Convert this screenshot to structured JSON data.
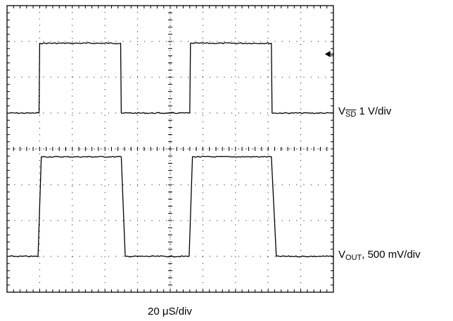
{
  "chart_data": {
    "type": "line",
    "grid": true,
    "x_divisions": 10,
    "y_divisions": 8,
    "time_per_div_us": 20,
    "x_label": {
      "value": "20 ",
      "unit_prefix": "μ",
      "unit": "S/div"
    },
    "series": [
      {
        "name": "VSD",
        "label": {
          "prefix": "V",
          "sub": "SD",
          "suffix": " 1 V/div"
        },
        "color": "#000000",
        "div_per_v": 1,
        "baseline_div": 5.0,
        "high_div": 6.95,
        "points_div": [
          [
            0,
            5.0
          ],
          [
            0.98,
            5.0
          ],
          [
            1.0,
            6.95
          ],
          [
            3.48,
            6.95
          ],
          [
            3.5,
            5.0
          ],
          [
            5.6,
            5.0
          ],
          [
            5.62,
            6.95
          ],
          [
            8.1,
            6.95
          ],
          [
            8.12,
            5.0
          ],
          [
            10,
            5.0
          ]
        ]
      },
      {
        "name": "VOUT",
        "label": {
          "prefix": "V",
          "sub": "OUT",
          "suffix": ", 500 mV/div"
        },
        "color": "#000000",
        "div_per_v": 2,
        "baseline_div": 1.0,
        "high_div": 3.78,
        "points_div": [
          [
            0,
            1.0
          ],
          [
            0.95,
            1.0
          ],
          [
            1.05,
            3.78
          ],
          [
            3.5,
            3.78
          ],
          [
            3.62,
            1.0
          ],
          [
            5.58,
            1.0
          ],
          [
            5.68,
            3.78
          ],
          [
            8.1,
            3.78
          ],
          [
            8.25,
            1.0
          ],
          [
            10,
            1.0
          ]
        ]
      }
    ],
    "trigger_marker": "left-arrow at right edge"
  }
}
